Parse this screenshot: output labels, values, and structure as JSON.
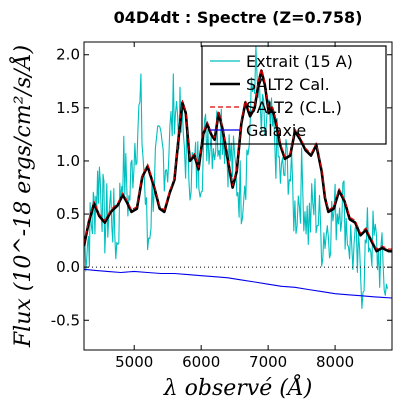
{
  "chart_data": {
    "type": "line",
    "title": "04D4dt : Spectre (Z=0.758)",
    "xlabel": "λ observé (Å)",
    "ylabel": "Flux (10^-18 ergs/cm²/s/Å)",
    "xlim": [
      4250,
      8850
    ],
    "ylim": [
      -0.78,
      2.12
    ],
    "xticks": [
      5000,
      6000,
      7000,
      8000
    ],
    "xtick_labels": [
      "5000",
      "6000",
      "7000",
      "8000"
    ],
    "yticks": [
      -0.5,
      0.0,
      0.5,
      1.0,
      1.5,
      2.0
    ],
    "ytick_labels": [
      "-0.5",
      "0.0",
      "0.5",
      "1.0",
      "1.5",
      "2.0"
    ],
    "legend_position": "top-right",
    "zero_line": true,
    "series": [
      {
        "name": "Extrait (15 A)",
        "color": "#00bfbf",
        "style": "noisy",
        "x": [
          4250,
          4330,
          4400,
          4480,
          4560,
          4650,
          4740,
          4830,
          4920,
          5010,
          5100,
          5200,
          5300,
          5400,
          5500,
          5600,
          5700,
          5800,
          5900,
          6000,
          6100,
          6200,
          6300,
          6400,
          6500,
          6600,
          6700,
          6800,
          6900,
          7000,
          7100,
          7200,
          7300,
          7400,
          7500,
          7600,
          7700,
          7800,
          7900,
          8000,
          8100,
          8200,
          8300,
          8400,
          8500,
          8600,
          8700,
          8800
        ],
        "y": [
          0.2,
          0.3,
          0.55,
          0.9,
          0.4,
          0.6,
          0.2,
          1.0,
          0.6,
          1.2,
          1.5,
          0.2,
          0.9,
          1.1,
          1.0,
          1.6,
          1.3,
          1.0,
          0.9,
          1.0,
          1.3,
          1.2,
          1.4,
          1.1,
          0.9,
          0.7,
          1.1,
          1.9,
          1.3,
          1.3,
          1.2,
          0.8,
          1.0,
          0.5,
          0.8,
          0.4,
          0.6,
          0.3,
          0.4,
          0.5,
          0.7,
          0.3,
          0.1,
          -0.1,
          0.3,
          0.2,
          0.0,
          -0.3
        ]
      },
      {
        "name": "SALT2 Cal.",
        "color": "#000000",
        "style": "thick",
        "x": [
          4250,
          4320,
          4400,
          4480,
          4560,
          4650,
          4750,
          4830,
          4900,
          4960,
          5040,
          5120,
          5200,
          5300,
          5380,
          5450,
          5530,
          5600,
          5660,
          5720,
          5770,
          5830,
          5900,
          5960,
          6030,
          6090,
          6150,
          6200,
          6260,
          6320,
          6400,
          6470,
          6530,
          6600,
          6660,
          6730,
          6800,
          6860,
          6900,
          6950,
          7010,
          7060,
          7110,
          7180,
          7250,
          7330,
          7400,
          7480,
          7560,
          7640,
          7720,
          7800,
          7850,
          7900,
          7980,
          8060,
          8140,
          8220,
          8300,
          8380,
          8460,
          8540,
          8620,
          8700,
          8800,
          8850
        ],
        "y": [
          0.2,
          0.42,
          0.6,
          0.48,
          0.42,
          0.52,
          0.58,
          0.68,
          0.6,
          0.52,
          0.55,
          0.85,
          0.95,
          0.75,
          0.55,
          0.52,
          0.7,
          0.82,
          1.2,
          1.55,
          1.45,
          1.0,
          1.05,
          0.92,
          1.25,
          1.35,
          1.25,
          1.2,
          1.45,
          1.3,
          1.0,
          0.75,
          0.9,
          1.35,
          1.55,
          1.42,
          1.5,
          1.75,
          1.85,
          1.72,
          1.45,
          1.5,
          1.38,
          1.15,
          1.02,
          1.05,
          1.28,
          1.2,
          1.1,
          1.05,
          1.15,
          0.9,
          0.65,
          0.52,
          0.55,
          0.72,
          0.62,
          0.45,
          0.42,
          0.3,
          0.35,
          0.25,
          0.15,
          0.18,
          0.15,
          0.15
        ]
      },
      {
        "name": "SALT2 (C.L.)",
        "color": "#dd0000",
        "style": "dashed",
        "x": [
          4250,
          4320,
          4400,
          4480,
          4560,
          4650,
          4750,
          4830,
          4900,
          4960,
          5040,
          5120,
          5200,
          5300,
          5380,
          5450,
          5530,
          5600,
          5660,
          5720,
          5770,
          5830,
          5900,
          5960,
          6030,
          6090,
          6150,
          6200,
          6260,
          6320,
          6400,
          6470,
          6530,
          6600,
          6660,
          6730,
          6800,
          6860,
          6900,
          6950,
          7010,
          7060,
          7110,
          7180,
          7250,
          7330,
          7400,
          7480,
          7560,
          7640,
          7720,
          7800,
          7850,
          7900,
          7980,
          8060,
          8140,
          8220,
          8300,
          8380,
          8460,
          8540,
          8620,
          8700,
          8800,
          8850
        ],
        "y": [
          0.22,
          0.44,
          0.62,
          0.5,
          0.44,
          0.54,
          0.6,
          0.7,
          0.62,
          0.54,
          0.57,
          0.87,
          0.97,
          0.77,
          0.57,
          0.54,
          0.72,
          0.84,
          1.22,
          1.57,
          1.47,
          1.02,
          1.07,
          0.94,
          1.27,
          1.37,
          1.27,
          1.22,
          1.47,
          1.32,
          1.02,
          0.77,
          0.92,
          1.37,
          1.57,
          1.44,
          1.52,
          1.77,
          1.87,
          1.74,
          1.47,
          1.52,
          1.4,
          1.17,
          1.04,
          1.07,
          1.3,
          1.22,
          1.12,
          1.07,
          1.17,
          0.92,
          0.67,
          0.54,
          0.57,
          0.74,
          0.64,
          0.47,
          0.44,
          0.32,
          0.37,
          0.27,
          0.17,
          0.2,
          0.17,
          0.17
        ]
      },
      {
        "name": "Galaxie",
        "color": "#0000ee",
        "style": "thin",
        "x": [
          4250,
          4400,
          4600,
          4800,
          5000,
          5200,
          5400,
          5600,
          5800,
          6000,
          6200,
          6400,
          6600,
          6800,
          7000,
          7200,
          7400,
          7600,
          7800,
          8000,
          8200,
          8400,
          8600,
          8850
        ],
        "y": [
          -0.02,
          -0.03,
          -0.04,
          -0.05,
          -0.04,
          -0.05,
          -0.06,
          -0.06,
          -0.07,
          -0.08,
          -0.09,
          -0.1,
          -0.12,
          -0.14,
          -0.16,
          -0.18,
          -0.19,
          -0.21,
          -0.23,
          -0.25,
          -0.26,
          -0.27,
          -0.28,
          -0.29
        ]
      }
    ]
  }
}
